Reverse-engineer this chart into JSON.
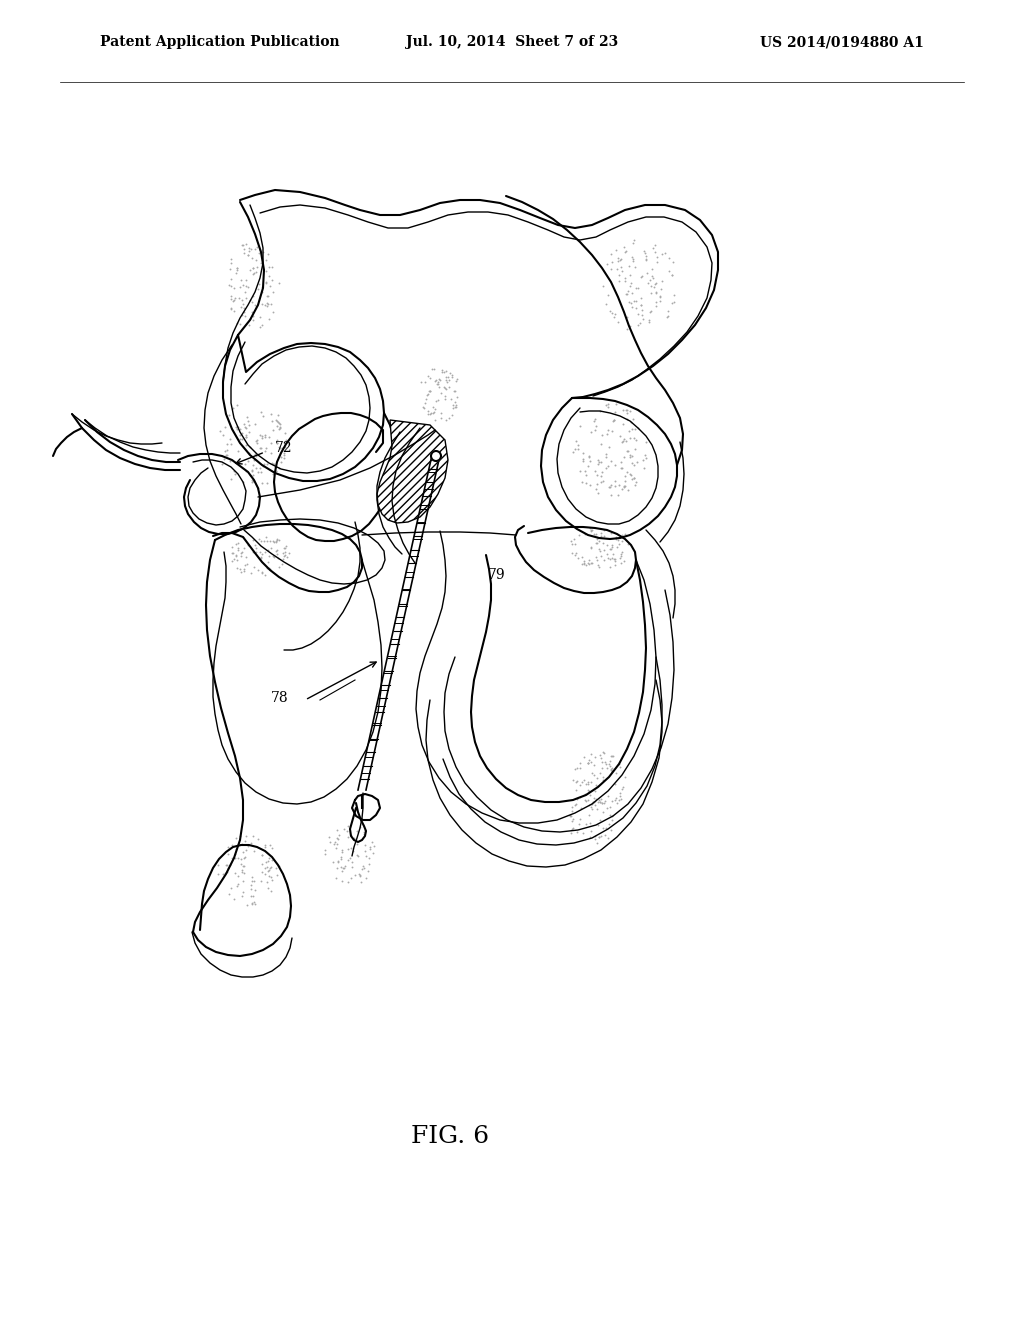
{
  "title_left": "Patent Application Publication",
  "title_mid": "Jul. 10, 2014  Sheet 7 of 23",
  "title_right": "US 2014/0194880 A1",
  "fig_label": "FIG. 6",
  "label_72": "72",
  "label_78": "78",
  "label_79": "79",
  "bg_color": "#ffffff",
  "line_color": "#000000",
  "stipple_color": "#888888",
  "hatch_color": "#333333",
  "title_fontsize": 10,
  "fig_label_fontsize": 18
}
